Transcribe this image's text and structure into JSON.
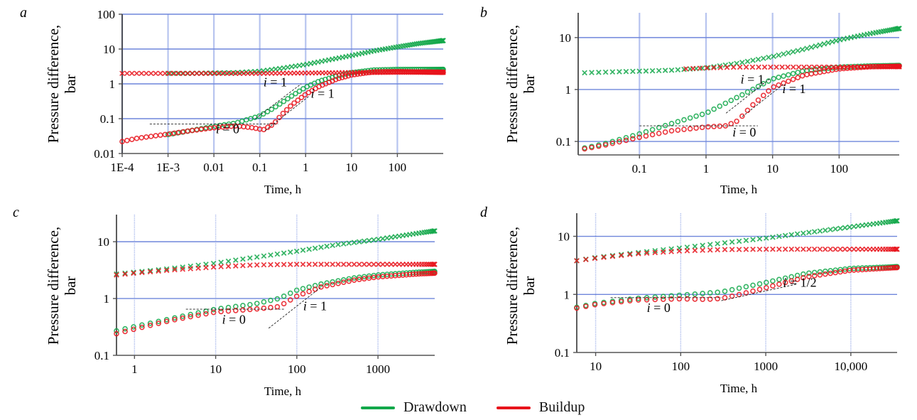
{
  "figure": {
    "legend": [
      {
        "label": "Drawdown",
        "color": "#12a84a"
      },
      {
        "label": "Buildup",
        "color": "#e8141c"
      }
    ]
  },
  "chart_data": [
    {
      "type": "scatter",
      "panel": "a",
      "title": "",
      "xlabel": "Time, h",
      "ylabel": "Pressure difference, bar",
      "xscale": "log",
      "yscale": "log",
      "xlim": [
        0.0001,
        1000
      ],
      "ylim": [
        0.01,
        100
      ],
      "xticks": [
        0.0001,
        0.001,
        0.01,
        0.1,
        1,
        10,
        100
      ],
      "xtick_labels": [
        "1E-4",
        "1E-3",
        "0.01",
        "0.1",
        "1",
        "10",
        "100"
      ],
      "yticks": [
        0.01,
        0.1,
        1,
        10,
        100
      ],
      "ytick_labels": [
        "0.01",
        "0.1",
        "1",
        "10",
        "100"
      ],
      "grid": true,
      "series": [
        {
          "name": "Drawdown pressure",
          "marker": "x",
          "color": "#12a84a",
          "x": [
            0.001,
            0.003,
            0.01,
            0.03,
            0.1,
            0.3,
            1,
            3,
            10,
            30,
            100,
            300,
            1000
          ],
          "y": [
            2.0,
            2.0,
            2.05,
            2.1,
            2.3,
            2.8,
            3.6,
            4.8,
            6.5,
            8.8,
            11.5,
            14.5,
            17.5
          ]
        },
        {
          "name": "Drawdown derivative",
          "marker": "o",
          "color": "#12a84a",
          "x": [
            0.001,
            0.003,
            0.01,
            0.03,
            0.1,
            0.2,
            0.5,
            1,
            2,
            5,
            10,
            30,
            100,
            300,
            1000
          ],
          "y": [
            0.035,
            0.045,
            0.06,
            0.075,
            0.12,
            0.2,
            0.45,
            0.8,
            1.2,
            1.7,
            2.1,
            2.5,
            2.6,
            2.6,
            2.6
          ]
        },
        {
          "name": "Buildup pressure",
          "marker": "x",
          "color": "#e8141c",
          "x": [
            0.0001,
            0.0002,
            0.0003,
            0.001,
            0.01,
            0.1,
            1,
            10,
            100,
            1000
          ],
          "y": [
            2.0,
            2.0,
            2.0,
            2.0,
            2.0,
            2.0,
            2.05,
            2.1,
            2.15,
            2.15
          ]
        },
        {
          "name": "Buildup derivative",
          "marker": "o",
          "color": "#e8141c",
          "x": [
            0.0001,
            0.0002,
            0.0005,
            0.001,
            0.003,
            0.01,
            0.03,
            0.07,
            0.12,
            0.2,
            0.3,
            0.5,
            1,
            2,
            5,
            10,
            30,
            100,
            300,
            1000
          ],
          "y": [
            0.022,
            0.027,
            0.032,
            0.036,
            0.045,
            0.055,
            0.062,
            0.055,
            0.048,
            0.07,
            0.13,
            0.25,
            0.5,
            0.85,
            1.4,
            1.8,
            2.2,
            2.25,
            2.2,
            2.15
          ]
        }
      ],
      "annotations": [
        {
          "text": "i = 1",
          "x": 0.12,
          "y": 0.85
        },
        {
          "text": "i = 1",
          "x": 1.3,
          "y": 0.4
        },
        {
          "text": "i = 0",
          "x": 0.011,
          "y": 0.038
        }
      ],
      "guide_lines": [
        {
          "x": [
            0.0004,
            0.25
          ],
          "y": [
            0.07,
            0.07
          ]
        },
        {
          "x": [
            0.08,
            0.8
          ],
          "y": [
            0.1,
            1.0
          ]
        },
        {
          "x": [
            0.13,
            1.2
          ],
          "y": [
            0.045,
            0.45
          ]
        }
      ]
    },
    {
      "type": "scatter",
      "panel": "b",
      "title": "",
      "xlabel": "Time, h",
      "ylabel": "Pressure difference, bar",
      "xscale": "log",
      "yscale": "log",
      "xlim": [
        0.012,
        800
      ],
      "ylim": [
        0.055,
        30
      ],
      "xticks": [
        0.1,
        1,
        10,
        100
      ],
      "xtick_labels": [
        "0.1",
        "1",
        "10",
        "100"
      ],
      "yticks": [
        0.1,
        1,
        10
      ],
      "ytick_labels": [
        "0.1",
        "1",
        "10"
      ],
      "grid": true,
      "series": [
        {
          "name": "Drawdown pressure",
          "marker": "x",
          "color": "#12a84a",
          "x": [
            0.015,
            0.05,
            0.1,
            0.3,
            1,
            3,
            10,
            30,
            100,
            300,
            800
          ],
          "y": [
            2.1,
            2.2,
            2.25,
            2.35,
            2.6,
            3.2,
            4.3,
            6.0,
            9.0,
            12.0,
            15.0
          ]
        },
        {
          "name": "Drawdown derivative",
          "marker": "o",
          "color": "#12a84a",
          "x": [
            0.015,
            0.03,
            0.1,
            0.3,
            1,
            2,
            5,
            10,
            30,
            100,
            300,
            800
          ],
          "y": [
            0.075,
            0.09,
            0.14,
            0.22,
            0.35,
            0.55,
            1.0,
            1.6,
            2.3,
            2.7,
            2.85,
            2.9
          ]
        },
        {
          "name": "Buildup pressure",
          "marker": "x",
          "color": "#e8141c",
          "x": [
            0.5,
            1,
            3,
            10,
            30,
            100,
            300,
            800
          ],
          "y": [
            2.5,
            2.6,
            2.7,
            2.7,
            2.7,
            2.7,
            2.75,
            2.75
          ]
        },
        {
          "name": "Buildup derivative",
          "marker": "o",
          "color": "#e8141c",
          "x": [
            0.015,
            0.03,
            0.1,
            0.3,
            1,
            2,
            3,
            5,
            10,
            30,
            100,
            300,
            800
          ],
          "y": [
            0.072,
            0.085,
            0.12,
            0.16,
            0.19,
            0.2,
            0.25,
            0.5,
            1.1,
            1.9,
            2.5,
            2.75,
            2.8
          ]
        }
      ],
      "annotations": [
        {
          "text": "i = 1",
          "x": 3.3,
          "y": 1.3
        },
        {
          "text": "i = 1",
          "x": 14,
          "y": 0.85
        },
        {
          "text": "i = 0",
          "x": 2.5,
          "y": 0.125
        }
      ],
      "guide_lines": [
        {
          "x": [
            0.1,
            6
          ],
          "y": [
            0.2,
            0.2
          ]
        },
        {
          "x": [
            2,
            9
          ],
          "y": [
            0.35,
            1.6
          ]
        },
        {
          "x": [
            3.5,
            15
          ],
          "y": [
            0.3,
            1.3
          ]
        }
      ]
    },
    {
      "type": "scatter",
      "panel": "c",
      "title": "",
      "xlabel": "Time, h",
      "ylabel": "Pressure difference, bar",
      "xscale": "log",
      "yscale": "log",
      "xlim": [
        0.6,
        5000
      ],
      "ylim": [
        0.1,
        30
      ],
      "xticks": [
        1,
        10,
        100,
        1000
      ],
      "xtick_labels": [
        "1",
        "10",
        "100",
        "1000"
      ],
      "yticks": [
        0.1,
        1,
        10
      ],
      "ytick_labels": [
        "0.1",
        "1",
        "10"
      ],
      "grid": true,
      "series": [
        {
          "name": "Drawdown pressure",
          "marker": "x",
          "color": "#12a84a",
          "x": [
            0.6,
            1,
            3,
            10,
            30,
            100,
            300,
            1000,
            3000,
            5000
          ],
          "y": [
            2.7,
            2.9,
            3.4,
            4.2,
            5.3,
            6.8,
            8.8,
            11.0,
            14.0,
            15.5
          ]
        },
        {
          "name": "Drawdown derivative",
          "marker": "o",
          "color": "#12a84a",
          "x": [
            0.6,
            1,
            3,
            10,
            30,
            60,
            100,
            200,
            500,
            1000,
            3000,
            5000
          ],
          "y": [
            0.27,
            0.32,
            0.45,
            0.65,
            0.8,
            1.0,
            1.4,
            1.8,
            2.3,
            2.6,
            2.9,
            3.0
          ]
        },
        {
          "name": "Buildup pressure",
          "marker": "x",
          "color": "#e8141c",
          "x": [
            0.6,
            1,
            3,
            10,
            30,
            100,
            300,
            1000,
            5000
          ],
          "y": [
            2.6,
            2.8,
            3.2,
            3.6,
            3.9,
            4.0,
            4.0,
            4.0,
            4.0
          ]
        },
        {
          "name": "Buildup derivative",
          "marker": "o",
          "color": "#e8141c",
          "x": [
            0.6,
            1,
            3,
            10,
            30,
            60,
            100,
            200,
            500,
            1000,
            3000,
            5000
          ],
          "y": [
            0.24,
            0.29,
            0.42,
            0.58,
            0.65,
            0.72,
            1.1,
            1.6,
            2.1,
            2.4,
            2.7,
            2.8
          ]
        }
      ],
      "annotations": [
        {
          "text": "i = 1",
          "x": 120,
          "y": 0.62
        },
        {
          "text": "i = 0",
          "x": 12,
          "y": 0.36
        }
      ],
      "guide_lines": [
        {
          "x": [
            4.3,
            70
          ],
          "y": [
            0.65,
            0.65
          ]
        },
        {
          "x": [
            45,
            200
          ],
          "y": [
            0.3,
            1.6
          ]
        }
      ]
    },
    {
      "type": "scatter",
      "panel": "d",
      "title": "",
      "xlabel": "Time, h",
      "ylabel": "Pressure difference, bar",
      "xscale": "log",
      "yscale": "log",
      "xlim": [
        6,
        35000
      ],
      "ylim": [
        0.1,
        25
      ],
      "xticks": [
        10,
        100,
        1000,
        10000
      ],
      "xtick_labels": [
        "10",
        "100",
        "1000",
        "10,000"
      ],
      "yticks": [
        0.1,
        1,
        10
      ],
      "ytick_labels": [
        "0.1",
        "1",
        "10"
      ],
      "grid": true,
      "series": [
        {
          "name": "Drawdown pressure",
          "marker": "x",
          "color": "#12a84a",
          "x": [
            6,
            10,
            30,
            100,
            300,
            1000,
            3000,
            10000,
            35000
          ],
          "y": [
            3.8,
            4.3,
            5.2,
            6.3,
            7.6,
            9.3,
            11.5,
            14.5,
            18.5
          ]
        },
        {
          "name": "Drawdown derivative",
          "marker": "o",
          "color": "#12a84a",
          "x": [
            6,
            10,
            30,
            100,
            300,
            1000,
            3000,
            10000,
            35000
          ],
          "y": [
            0.6,
            0.7,
            0.85,
            0.97,
            1.1,
            1.6,
            2.3,
            2.8,
            3.0
          ]
        },
        {
          "name": "Buildup pressure",
          "marker": "x",
          "color": "#e8141c",
          "x": [
            6,
            10,
            30,
            100,
            300,
            1000,
            3000,
            10000,
            35000
          ],
          "y": [
            3.8,
            4.2,
            5.0,
            5.6,
            5.9,
            6.0,
            6.0,
            6.0,
            6.0
          ]
        },
        {
          "name": "Buildup derivative",
          "marker": "o",
          "color": "#e8141c",
          "x": [
            6,
            10,
            30,
            100,
            200,
            300,
            500,
            1000,
            3000,
            10000,
            35000
          ],
          "y": [
            0.58,
            0.67,
            0.8,
            0.84,
            0.82,
            0.85,
            1.0,
            1.3,
            2.0,
            2.6,
            2.9
          ]
        }
      ],
      "annotations": [
        {
          "text": "i = 1/2",
          "x": 1600,
          "y": 1.35
        },
        {
          "text": "i = 0",
          "x": 40,
          "y": 0.5
        }
      ],
      "guide_lines": [
        {
          "x": [
            15,
            300
          ],
          "y": [
            0.88,
            0.88
          ]
        },
        {
          "x": [
            300,
            2300
          ],
          "y": [
            0.78,
            1.5
          ]
        }
      ]
    }
  ],
  "panels": {
    "a": {
      "letter": "a",
      "ylabel_line1": "Pressure difference,",
      "ylabel_line2": "bar",
      "xlabel": "Time, h"
    },
    "b": {
      "letter": "b",
      "ylabel_line1": "Pressure difference,",
      "ylabel_line2": "bar",
      "xlabel": "Time, h"
    },
    "c": {
      "letter": "c",
      "ylabel_line1": "Pressure difference,",
      "ylabel_line2": "bar",
      "xlabel": "Time, h"
    },
    "d": {
      "letter": "d",
      "ylabel_line1": "Pressure difference,",
      "ylabel_line2": "bar",
      "xlabel": "Time, h"
    }
  }
}
